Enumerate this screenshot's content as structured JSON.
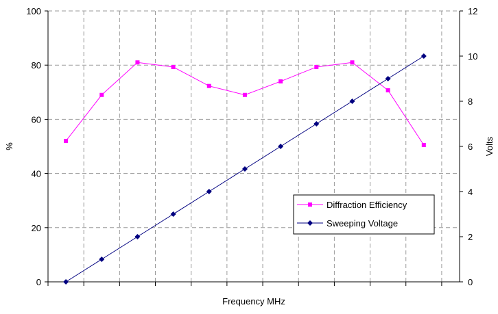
{
  "chart_data": {
    "type": "line",
    "title": "",
    "xlabel": "Frequency MHz",
    "ylabel_left": "%",
    "ylabel_right": "Volts",
    "x": [
      0,
      1,
      2,
      3,
      4,
      5,
      6,
      7,
      8,
      9,
      10
    ],
    "ylim_left": [
      0,
      100
    ],
    "ylim_right": [
      0,
      12
    ],
    "yticks_left": [
      "0",
      "20",
      "40",
      "60",
      "80",
      "100"
    ],
    "yticks_right": [
      "0",
      "2",
      "4",
      "6",
      "8",
      "10",
      "12"
    ],
    "grid": true,
    "legend_position": "right, lower-middle",
    "series": [
      {
        "name": "Diffraction Efficiency",
        "axis": "left",
        "color": "#ff00ff",
        "marker": "square",
        "values": [
          52,
          69,
          81,
          79.3,
          72.3,
          69,
          74,
          79.3,
          81,
          70.7,
          50.5
        ]
      },
      {
        "name": "Sweeping Voltage",
        "axis": "right",
        "color": "#000080",
        "marker": "diamond",
        "values": [
          0,
          1,
          2,
          3,
          4,
          5,
          6,
          7,
          8,
          9,
          10
        ]
      }
    ]
  }
}
